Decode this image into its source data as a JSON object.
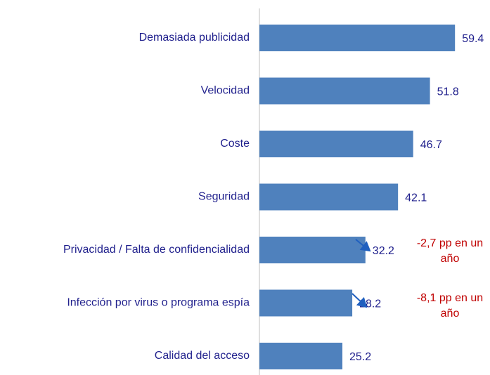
{
  "chart_data": {
    "type": "bar",
    "orientation": "horizontal",
    "categories": [
      "Demasiada publicidad",
      "Velocidad",
      "Coste",
      "Seguridad",
      "Privacidad / Falta de confidencialidad",
      "Infección por virus o programa espía",
      "Calidad del acceso"
    ],
    "values": [
      59.4,
      51.8,
      46.7,
      42.1,
      32.2,
      28.2,
      25.2
    ],
    "color": "#4f81bd",
    "xlim": [
      0,
      60
    ],
    "annotations": [
      "-2,7 pp en un año",
      "-8,1 pp en un año"
    ]
  }
}
